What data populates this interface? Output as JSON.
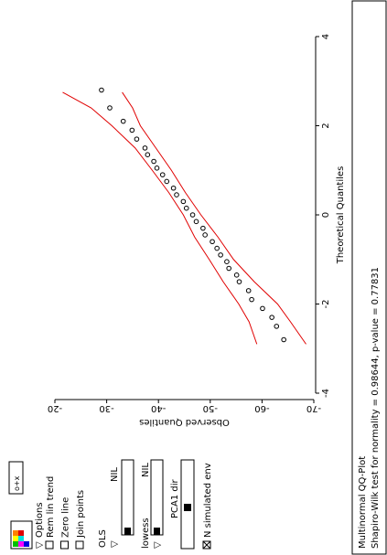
{
  "controls": {
    "glyph_button": "o+x",
    "options": "Options",
    "checkboxes": [
      "Rem lin trend",
      "Zero line",
      "Join points"
    ],
    "ols": "OLS",
    "ols_value": "NIL",
    "lowess": "lowess",
    "lowess_value": "NIL",
    "pca": "PCA1 dir",
    "simulated": "N simulated env"
  },
  "panel": {
    "title": "Multinormal QQ-Plot",
    "test": "Shapiro-Wilk test for normality = 0.98644, p-value = 0.77831"
  },
  "chart_data": {
    "type": "scatter",
    "xlabel": "Theoretical Quantiles",
    "ylabel": "Observed Quantiles",
    "x": [
      -2.8,
      -2.5,
      -2.3,
      -2.1,
      -1.9,
      -1.7,
      -1.5,
      -1.35,
      -1.2,
      -1.05,
      -0.9,
      -0.75,
      -0.6,
      -0.45,
      -0.3,
      -0.15,
      0,
      0.15,
      0.3,
      0.45,
      0.6,
      0.75,
      0.9,
      1.05,
      1.2,
      1.35,
      1.5,
      1.7,
      1.9,
      2.1,
      2.4,
      2.8
    ],
    "values": [
      -64.2,
      -62.8,
      -61.9,
      -60.1,
      -58.0,
      -57.4,
      -55.6,
      -55.1,
      -53.6,
      -53.2,
      -52.0,
      -51.3,
      -50.4,
      -49.0,
      -48.6,
      -47.3,
      -46.6,
      -45.4,
      -44.8,
      -43.5,
      -42.9,
      -41.6,
      -40.8,
      -39.7,
      -39.1,
      -37.9,
      -37.4,
      -35.8,
      -34.9,
      -33.2,
      -30.6,
      -29.0
    ],
    "color": "#000000",
    "envelope_x": [
      -2.9,
      -2.4,
      -2,
      -1.5,
      -1,
      -0.5,
      0,
      0.5,
      1,
      1.5,
      2,
      2.4,
      2.75
    ],
    "envelope_upper": [
      -59,
      -57.5,
      -55.5,
      -52.5,
      -49.8,
      -47,
      -44.8,
      -42,
      -38.8,
      -35.5,
      -31,
      -27,
      -21.5
    ],
    "envelope_lower": [
      -68.5,
      -65.5,
      -63,
      -58.5,
      -54.5,
      -51.5,
      -48.2,
      -45.2,
      -42.5,
      -39.5,
      -36.5,
      -35,
      -33
    ],
    "envelope_color": "#e00000",
    "xlim": [
      -4,
      4
    ],
    "ylim": [
      -70,
      -20
    ],
    "xticks": [
      -4,
      -2,
      0,
      2,
      4
    ],
    "yticks": [
      -20,
      -30,
      -40,
      -50,
      -60,
      -70
    ]
  }
}
